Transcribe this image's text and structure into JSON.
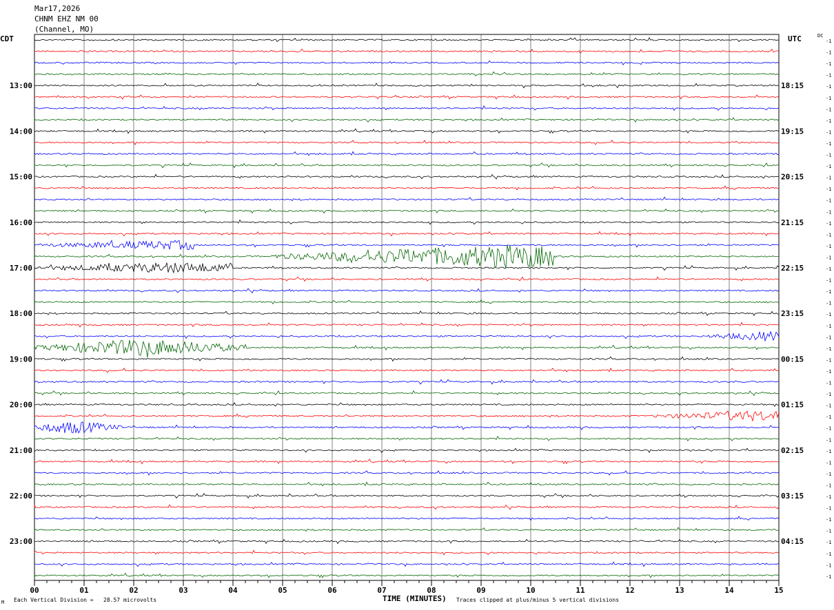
{
  "header": {
    "date": "Mar17,2026",
    "station": "CHNM EHZ NM 00",
    "network": "(Channel, MO)"
  },
  "left_zone": "CDT",
  "right_zone": "UTC",
  "dc_label": "DC",
  "footer": {
    "mark": "M",
    "scale": "Each Vertical Division =   28.57 microvolts",
    "xlabel": "TIME (MINUTES)",
    "clip_note": "Traces clipped at plus/minus 5 vertical divisions"
  },
  "colors": {
    "trace_cycle": [
      "#000000",
      "#ff0000",
      "#0000ff",
      "#006400"
    ],
    "grid": "#808080",
    "frame": "#000000"
  },
  "chart_data": {
    "type": "seismogram_helicorder",
    "xlabel": "TIME (MINUTES)",
    "xlim": [
      0,
      15
    ],
    "x_ticks": [
      "00",
      "01",
      "02",
      "03",
      "04",
      "05",
      "06",
      "07",
      "08",
      "09",
      "10",
      "11",
      "12",
      "13",
      "14",
      "15"
    ],
    "traces_per_hour": 4,
    "trace_count": 48,
    "left_hour_labels": [
      "13:00",
      "14:00",
      "15:00",
      "16:00",
      "17:00",
      "18:00",
      "19:00",
      "20:00",
      "21:00",
      "22:00",
      "23:00"
    ],
    "right_hour_labels": [
      "18:15",
      "19:15",
      "20:15",
      "21:15",
      "22:15",
      "23:15",
      "00:15",
      "01:15",
      "02:15",
      "03:15",
      "04:15"
    ],
    "first_labeled_trace_index": 4,
    "dc_offsets": -1,
    "dc_offset_label": "-1",
    "events": [
      {
        "trace": 19,
        "start_min": 4.8,
        "end_min": 10.5,
        "peak_min": 9.6,
        "amplitude": 16
      },
      {
        "trace": 20,
        "start_min": 0.0,
        "end_min": 4.0,
        "peak_min": 2.8,
        "amplitude": 7
      },
      {
        "trace": 18,
        "start_min": 0.0,
        "end_min": 3.2,
        "peak_min": 3.0,
        "amplitude": 6
      },
      {
        "trace": 27,
        "start_min": 0.0,
        "end_min": 4.3,
        "peak_min": 2.2,
        "amplitude": 12
      },
      {
        "trace": 33,
        "start_min": 12.5,
        "end_min": 15.0,
        "peak_min": 14.5,
        "amplitude": 7
      },
      {
        "trace": 34,
        "start_min": 0.0,
        "end_min": 1.8,
        "peak_min": 0.8,
        "amplitude": 9
      },
      {
        "trace": 26,
        "start_min": 13.5,
        "end_min": 15.0,
        "peak_min": 14.8,
        "amplitude": 6
      }
    ]
  }
}
